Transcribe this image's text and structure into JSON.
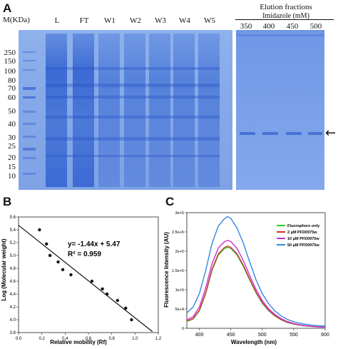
{
  "panelA": {
    "letter": "A",
    "mw_header": "M(KDa)",
    "lanes": [
      "L",
      "FT",
      "W1",
      "W2",
      "W3",
      "W4",
      "W5"
    ],
    "markers": [
      "250",
      "150",
      "100",
      "80",
      "70",
      "60",
      "50",
      "40",
      "30",
      "25",
      "20",
      "15",
      "10"
    ],
    "elution_title": "Elution fractions",
    "elution_subtitle": "Imidazole (mM)",
    "elution_lanes": [
      "350",
      "400",
      "450",
      "500"
    ],
    "arrow": "←"
  },
  "panelB": {
    "letter": "B",
    "equation": "y= -1.44x + 5.47",
    "r2": "R² = 0.959",
    "chart_data": {
      "type": "scatter",
      "xlabel": "Relative mobility (Rf)",
      "ylabel": "Log (Molecular weight)",
      "xlim": [
        0.0,
        1.2
      ],
      "ylim": [
        3.8,
        5.6
      ],
      "xticks": [
        "0.0",
        "0.2",
        "0.4",
        "0.6",
        "0.8",
        "1.0",
        "1.2"
      ],
      "yticks": [
        "3.8",
        "4.0",
        "4.2",
        "4.4",
        "4.6",
        "4.8",
        "5.0",
        "5.2",
        "5.4",
        "5.6"
      ],
      "points": [
        [
          0.18,
          5.4
        ],
        [
          0.24,
          5.18
        ],
        [
          0.27,
          5.0
        ],
        [
          0.34,
          4.9
        ],
        [
          0.38,
          4.78
        ],
        [
          0.45,
          4.7
        ],
        [
          0.63,
          4.6
        ],
        [
          0.72,
          4.48
        ],
        [
          0.76,
          4.4
        ],
        [
          0.85,
          4.3
        ],
        [
          0.92,
          4.18
        ],
        [
          0.97,
          4.0
        ]
      ],
      "fit": {
        "slope": -1.44,
        "intercept": 5.47,
        "x_range": [
          0.0,
          1.15
        ]
      }
    }
  },
  "panelC": {
    "letter": "C",
    "chart_data": {
      "type": "line",
      "xlabel": "Wavelength (nm)",
      "ylabel": "Fluorescence Intensity (AU)",
      "xlim": [
        380,
        600
      ],
      "ylim": [
        0,
        300000
      ],
      "xticks": [
        "400",
        "450",
        "500",
        "550",
        "600"
      ],
      "yticks": [
        "0",
        "5e+4",
        "1e+5",
        "1.5e+5",
        "2e+5",
        "2.5e+5",
        "3e+5"
      ],
      "x": [
        380,
        390,
        400,
        410,
        420,
        430,
        440,
        445,
        450,
        460,
        470,
        480,
        490,
        500,
        510,
        520,
        530,
        540,
        550,
        560,
        570,
        580,
        590,
        600
      ],
      "series": [
        {
          "name": "Fluorophore only",
          "color": "#33cc33",
          "values": [
            18000,
            24000,
            45000,
            90000,
            150000,
            190000,
            207000,
            210000,
            207000,
            190000,
            160000,
            125000,
            92000,
            65000,
            46000,
            32000,
            22000,
            15000,
            11000,
            8000,
            6000,
            4500,
            3500,
            3000
          ]
        },
        {
          "name": "2 μM PFD0975w",
          "color": "#cc3333",
          "values": [
            19000,
            25000,
            47000,
            92000,
            153000,
            193000,
            210000,
            213000,
            210000,
            193000,
            163000,
            128000,
            94000,
            67000,
            47000,
            33000,
            23000,
            16000,
            11500,
            8500,
            6200,
            4700,
            3600,
            3100
          ]
        },
        {
          "name": "10 μM PFD0975w",
          "color": "#cc33cc",
          "values": [
            22000,
            30000,
            55000,
            105000,
            168000,
            208000,
            225000,
            228000,
            225000,
            207000,
            175000,
            137000,
            101000,
            72000,
            51000,
            36000,
            25000,
            17500,
            12500,
            9000,
            6800,
            5000,
            3900,
            3300
          ]
        },
        {
          "name": "50 μM PFD0975w",
          "color": "#3388dd",
          "values": [
            40000,
            55000,
            90000,
            150000,
            220000,
            265000,
            285000,
            290000,
            285000,
            260000,
            220000,
            172000,
            126000,
            90000,
            64000,
            45000,
            32000,
            23000,
            17000,
            13000,
            10000,
            8000,
            6500,
            5500
          ]
        }
      ]
    }
  }
}
